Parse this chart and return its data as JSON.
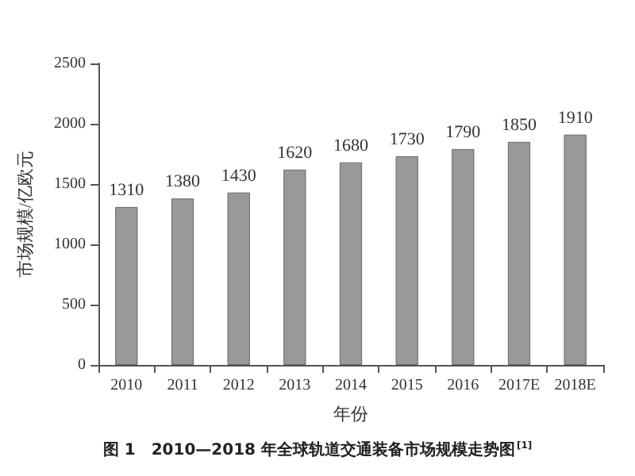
{
  "chart_data": {
    "type": "bar",
    "title": "图 1　2010—2018 年全球轨道交通装备市场规模走势图$^{[1]}$",
    "xlabel": "年份",
    "ylabel": "市场规模/亿欧元",
    "categories": [
      "2010",
      "2011",
      "2012",
      "2013",
      "2014",
      "2015",
      "2016",
      "2017E",
      "2018E"
    ],
    "values": [
      1310,
      1380,
      1430,
      1620,
      1680,
      1730,
      1790,
      1850,
      1910
    ],
    "color": "#999999",
    "ylim": [
      0,
      2500
    ],
    "yticks": [
      0,
      500,
      1000,
      1500,
      2000,
      2500
    ],
    "data_labels": true,
    "grid": false
  }
}
